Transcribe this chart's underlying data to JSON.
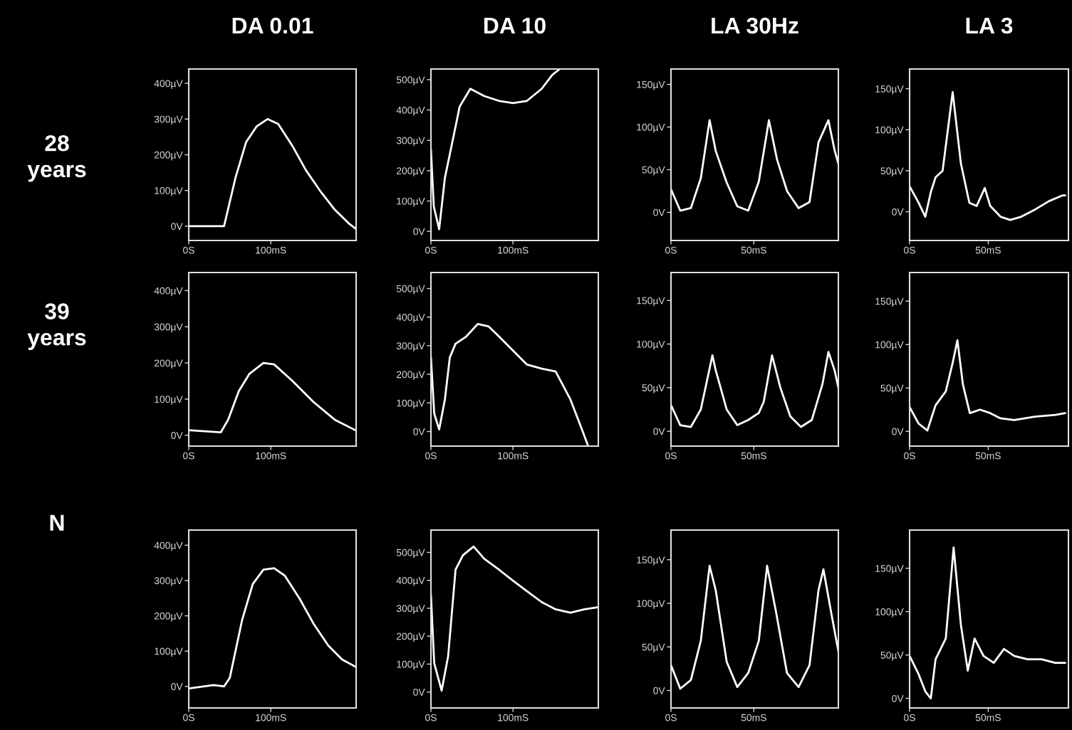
{
  "chart_data": [
    {
      "type": "line",
      "title": "DA 0.01",
      "ylabel": "28\nyears",
      "x": [
        0,
        43,
        57,
        70,
        83,
        96,
        109,
        126,
        143,
        161,
        178,
        196,
        204
      ],
      "series": [
        {
          "color": "#ffffff",
          "values": [
            0,
            0,
            136,
            236,
            280,
            300,
            286,
            226,
            156,
            96,
            46,
            6,
            -8
          ]
        }
      ],
      "xlim": [
        0,
        204
      ],
      "ylim": [
        -40,
        440
      ],
      "xticks": [
        {
          "value": 0,
          "label": "0S"
        },
        {
          "value": 100,
          "label": "100mS"
        }
      ],
      "yticks": [
        {
          "value": 0,
          "label": "0V"
        },
        {
          "value": 100,
          "label": "100µV"
        },
        {
          "value": 200,
          "label": "200µV"
        },
        {
          "value": 300,
          "label": "300µV"
        },
        {
          "value": 400,
          "label": "400µV"
        }
      ]
    },
    {
      "type": "line",
      "title": "DA 10",
      "x": [
        0,
        3.5,
        10,
        17,
        26,
        35,
        48,
        65,
        83,
        100,
        117,
        135,
        148,
        157
      ],
      "series": [
        {
          "color": "#ffffff",
          "values": [
            270,
            82,
            7,
            176,
            293,
            411,
            470,
            446,
            430,
            423,
            430,
            470,
            516,
            535
          ]
        }
      ],
      "xlim": [
        0,
        204
      ],
      "ylim": [
        -30,
        535
      ],
      "xticks": [
        {
          "value": 0,
          "label": "0S"
        },
        {
          "value": 100,
          "label": "100mS"
        }
      ],
      "yticks": [
        {
          "value": 0,
          "label": "0V"
        },
        {
          "value": 100,
          "label": "100µV"
        },
        {
          "value": 200,
          "label": "200µV"
        },
        {
          "value": 300,
          "label": "300µV"
        },
        {
          "value": 400,
          "label": "400µV"
        },
        {
          "value": 500,
          "label": "500µV"
        }
      ]
    },
    {
      "type": "line",
      "title": "LA 30Hz",
      "x": [
        0,
        5.6,
        12,
        18,
        23.3,
        27,
        33.6,
        40,
        46.6,
        53,
        59.1,
        64,
        70,
        77,
        83.6,
        89,
        95,
        98.7,
        101
      ],
      "series": [
        {
          "color": "#ffffff",
          "values": [
            27,
            2,
            5,
            40,
            108,
            72,
            35,
            7,
            2,
            36,
            108,
            62,
            25,
            5,
            12,
            82,
            108,
            73,
            57
          ]
        }
      ],
      "xlim": [
        0,
        101
      ],
      "ylim": [
        -33,
        168
      ],
      "xticks": [
        {
          "value": 0,
          "label": "0S"
        },
        {
          "value": 50,
          "label": "50mS"
        }
      ],
      "yticks": [
        {
          "value": 0,
          "label": "0V"
        },
        {
          "value": 50,
          "label": "50µV"
        },
        {
          "value": 100,
          "label": "100µV"
        },
        {
          "value": 150,
          "label": "150µV"
        }
      ]
    },
    {
      "type": "line",
      "title": "LA 3",
      "x": [
        0,
        5.7,
        10,
        13.5,
        16.5,
        21,
        27.4,
        32.6,
        38,
        42.6,
        47.8,
        51.3,
        57.8,
        64,
        71,
        80,
        88.7,
        97.4,
        99
      ],
      "series": [
        {
          "color": "#ffffff",
          "values": [
            31,
            11,
            -6,
            24,
            42,
            50,
            146,
            59,
            11,
            7,
            29,
            7,
            -6,
            -10,
            -6,
            3,
            13,
            20,
            20
          ]
        }
      ],
      "xlim": [
        0,
        101
      ],
      "ylim": [
        -35,
        174
      ],
      "xticks": [
        {
          "value": 0,
          "label": "0S"
        },
        {
          "value": 50,
          "label": "50mS"
        }
      ],
      "yticks": [
        {
          "value": 0,
          "label": "0V"
        },
        {
          "value": 50,
          "label": "50µV"
        },
        {
          "value": 100,
          "label": "100µV"
        },
        {
          "value": 150,
          "label": "150µV"
        }
      ]
    },
    {
      "type": "line",
      "ylabel": "39\nyears",
      "x": [
        0,
        39,
        48,
        61,
        74,
        91,
        104,
        126,
        152,
        178,
        203
      ],
      "series": [
        {
          "color": "#ffffff",
          "values": [
            14,
            8,
            43,
            122,
            170,
            200,
            196,
            151,
            92,
            43,
            14
          ]
        }
      ],
      "xlim": [
        0,
        204
      ],
      "ylim": [
        -30,
        450
      ],
      "xticks": [
        {
          "value": 0,
          "label": "0S"
        },
        {
          "value": 100,
          "label": "100mS"
        }
      ],
      "yticks": [
        {
          "value": 0,
          "label": "0V"
        },
        {
          "value": 100,
          "label": "100µV"
        },
        {
          "value": 200,
          "label": "200µV"
        },
        {
          "value": 300,
          "label": "300µV"
        },
        {
          "value": 400,
          "label": "400µV"
        }
      ]
    },
    {
      "type": "line",
      "x": [
        0,
        4,
        10,
        17,
        23,
        30,
        43,
        57,
        70,
        83,
        100,
        117,
        135,
        152,
        170,
        183,
        191
      ],
      "series": [
        {
          "color": "#ffffff",
          "values": [
            259,
            63,
            7,
            112,
            259,
            307,
            332,
            376,
            368,
            332,
            283,
            234,
            220,
            210,
            112,
            15,
            -46
          ]
        }
      ],
      "xlim": [
        0,
        204
      ],
      "ylim": [
        -51,
        556
      ],
      "xticks": [
        {
          "value": 0,
          "label": "0S"
        },
        {
          "value": 100,
          "label": "100mS"
        }
      ],
      "yticks": [
        {
          "value": 0,
          "label": "0V"
        },
        {
          "value": 100,
          "label": "100µV"
        },
        {
          "value": 200,
          "label": "200µV"
        },
        {
          "value": 300,
          "label": "300µV"
        },
        {
          "value": 400,
          "label": "400µV"
        },
        {
          "value": 500,
          "label": "500µV"
        }
      ]
    },
    {
      "type": "line",
      "x": [
        0,
        5.6,
        12,
        18,
        25,
        27,
        33.6,
        40,
        46.6,
        53,
        56,
        61,
        66,
        72,
        78.4,
        85,
        91.4,
        95,
        98.7,
        101
      ],
      "series": [
        {
          "color": "#ffffff",
          "values": [
            30,
            7,
            5,
            25,
            87,
            70,
            25,
            7,
            13,
            21,
            34,
            87,
            50,
            17,
            5,
            13,
            54,
            91,
            70,
            50
          ]
        }
      ],
      "xlim": [
        0,
        101
      ],
      "ylim": [
        -17,
        182
      ],
      "xticks": [
        {
          "value": 0,
          "label": "0S"
        },
        {
          "value": 50,
          "label": "50mS"
        }
      ],
      "yticks": [
        {
          "value": 0,
          "label": "0V"
        },
        {
          "value": 50,
          "label": "50µV"
        },
        {
          "value": 100,
          "label": "100µV"
        },
        {
          "value": 150,
          "label": "150µV"
        }
      ]
    },
    {
      "type": "line",
      "x": [
        0,
        5.7,
        11.3,
        16.5,
        23,
        27.4,
        30.4,
        33.9,
        38.3,
        44.8,
        51.3,
        57.8,
        66.5,
        79.6,
        92.6,
        99
      ],
      "series": [
        {
          "color": "#ffffff",
          "values": [
            28,
            9,
            1,
            30,
            46,
            79,
            105,
            54,
            21,
            25,
            21,
            15,
            13,
            17,
            19,
            21
          ]
        }
      ],
      "xlim": [
        0,
        101
      ],
      "ylim": [
        -17,
        183
      ],
      "xticks": [
        {
          "value": 0,
          "label": "0S"
        },
        {
          "value": 50,
          "label": "50mS"
        }
      ],
      "yticks": [
        {
          "value": 0,
          "label": "0V"
        },
        {
          "value": 50,
          "label": "50µV"
        },
        {
          "value": 100,
          "label": "100µV"
        },
        {
          "value": 150,
          "label": "150µV"
        }
      ]
    },
    {
      "type": "line",
      "ylabel": "N",
      "x": [
        0,
        30,
        43,
        50,
        65,
        78,
        91,
        104,
        117,
        135,
        152,
        170,
        187,
        204
      ],
      "series": [
        {
          "color": "#ffffff",
          "values": [
            -6,
            4,
            0,
            24,
            188,
            290,
            331,
            335,
            314,
            249,
            178,
            116,
            76,
            55
          ]
        }
      ],
      "xlim": [
        0,
        204
      ],
      "ylim": [
        -61,
        443
      ],
      "xticks": [
        {
          "value": 0,
          "label": "0S"
        },
        {
          "value": 100,
          "label": "100mS"
        }
      ],
      "yticks": [
        {
          "value": 0,
          "label": "0V"
        },
        {
          "value": 100,
          "label": "100µV"
        },
        {
          "value": 200,
          "label": "200µV"
        },
        {
          "value": 300,
          "label": "300µV"
        },
        {
          "value": 400,
          "label": "400µV"
        }
      ]
    },
    {
      "type": "line",
      "x": [
        0,
        4,
        13,
        21,
        30,
        39,
        52,
        65,
        83,
        100,
        117,
        135,
        152,
        170,
        187,
        204
      ],
      "series": [
        {
          "color": "#ffffff",
          "values": [
            348,
            103,
            5,
            129,
            438,
            490,
            521,
            477,
            438,
            399,
            361,
            322,
            296,
            284,
            296,
            304
          ]
        }
      ],
      "xlim": [
        0,
        204
      ],
      "ylim": [
        -57,
        580
      ],
      "xticks": [
        {
          "value": 0,
          "label": "0S"
        },
        {
          "value": 100,
          "label": "100mS"
        }
      ],
      "yticks": [
        {
          "value": 0,
          "label": "0V"
        },
        {
          "value": 100,
          "label": "100µV"
        },
        {
          "value": 200,
          "label": "200µV"
        },
        {
          "value": 300,
          "label": "300µV"
        },
        {
          "value": 400,
          "label": "400µV"
        },
        {
          "value": 500,
          "label": "500µV"
        }
      ]
    },
    {
      "type": "line",
      "x": [
        0,
        5.6,
        12,
        18,
        23.3,
        27,
        33.6,
        40,
        46.6,
        53,
        58,
        63.4,
        70,
        77,
        83.6,
        89,
        92,
        96.6,
        101
      ],
      "series": [
        {
          "color": "#ffffff",
          "values": [
            29,
            2,
            12,
            57,
            143,
            115,
            33,
            4,
            20,
            57,
            143,
            90,
            20,
            4,
            29,
            115,
            139,
            90,
            45
          ]
        }
      ],
      "xlim": [
        0,
        101
      ],
      "ylim": [
        -20,
        184
      ],
      "xticks": [
        {
          "value": 0,
          "label": "0S"
        },
        {
          "value": 50,
          "label": "50mS"
        }
      ],
      "yticks": [
        {
          "value": 0,
          "label": "0V"
        },
        {
          "value": 50,
          "label": "50µV"
        },
        {
          "value": 100,
          "label": "100µV"
        },
        {
          "value": 150,
          "label": "150µV"
        }
      ]
    },
    {
      "type": "line",
      "x": [
        0,
        5.7,
        10,
        13.5,
        16.5,
        23,
        28,
        32.6,
        37,
        41.3,
        47,
        53.5,
        60,
        66.5,
        75,
        84,
        92.6,
        99
      ],
      "series": [
        {
          "color": "#ffffff",
          "values": [
            49,
            28,
            8,
            0,
            45,
            69,
            174,
            85,
            32,
            69,
            49,
            41,
            57,
            49,
            45,
            45,
            41,
            41
          ]
        }
      ],
      "xlim": [
        0,
        101
      ],
      "ylim": [
        -11,
        194
      ],
      "xticks": [
        {
          "value": 0,
          "label": "0S"
        },
        {
          "value": 50,
          "label": "50mS"
        }
      ],
      "yticks": [
        {
          "value": 0,
          "label": "0V"
        },
        {
          "value": 50,
          "label": "50µV"
        },
        {
          "value": 100,
          "label": "100µV"
        },
        {
          "value": 150,
          "label": "150µV"
        }
      ]
    }
  ]
}
